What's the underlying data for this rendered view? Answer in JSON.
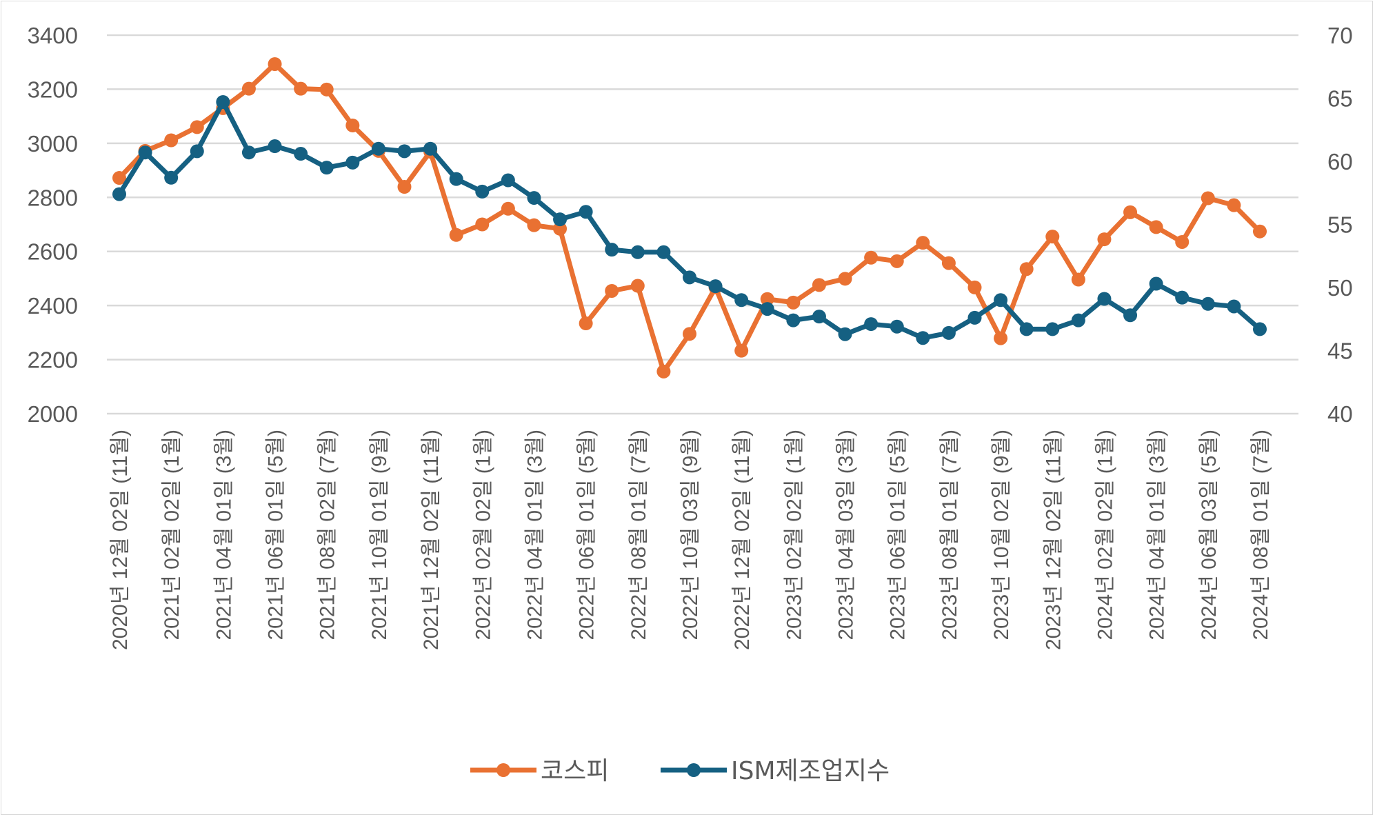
{
  "chart_data": {
    "type": "line",
    "title": "",
    "x_labels": [
      "2020년 12월 02일 (11월)",
      "2021년 02월 02일 (1월)",
      "2021년 04월 01일 (3월)",
      "2021년 06월 01일 (5월)",
      "2021년 08월 02일 (7월)",
      "2021년 10월 01일 (9월)",
      "2021년 12월 02일 (11월)",
      "2022년 02월 02일 (1월)",
      "2022년 04월 01일 (3월)",
      "2022년 06월 01일 (5월)",
      "2022년 08월 01일 (7월)",
      "2022년 10월 03일 (9월)",
      "2022년 12월 02일 (11월)",
      "2023년 02월 02일 (1월)",
      "2023년 04월 03일 (3월)",
      "2023년 06월 01일 (5월)",
      "2023년 08월 01일 (7월)",
      "2023년 10월 02일 (9월)",
      "2023년 12월 02일 (11월)",
      "2024년 02월 02일 (1월)",
      "2024년 04월 01일 (3월)",
      "2024년 06월 03일 (5월)",
      "2024년 08월 01일 (7월)"
    ],
    "label_every": 2,
    "n_points": 45,
    "y_left": {
      "min": 2000,
      "max": 3400,
      "step": 200,
      "ticks": [
        "2000",
        "2200",
        "2400",
        "2600",
        "2800",
        "3000",
        "3200",
        "3400"
      ]
    },
    "y_right": {
      "min": 40,
      "max": 70,
      "step": 5,
      "ticks": [
        "40",
        "45",
        "50",
        "55",
        "60",
        "65",
        "70"
      ]
    },
    "grid": true,
    "legend_position": "bottom",
    "series": [
      {
        "name": "코스피",
        "axis": "left",
        "color": "#E97132",
        "values": [
          2872,
          2972,
          3011,
          3060,
          3130,
          3202,
          3293,
          3202,
          3199,
          3066,
          2972,
          2839,
          2969,
          2661,
          2700,
          2758,
          2697,
          2684,
          2334,
          2454,
          2473,
          2156,
          2295,
          2467,
          2233,
          2424,
          2411,
          2476,
          2499,
          2577,
          2564,
          2632,
          2557,
          2467,
          2279,
          2535,
          2655,
          2496,
          2645,
          2745,
          2690,
          2635,
          2797,
          2771,
          2674
        ]
      },
      {
        "name": "ISM제조업지수",
        "axis": "right",
        "color": "#156082",
        "values": [
          57.4,
          60.7,
          58.7,
          60.8,
          64.7,
          60.7,
          61.2,
          60.6,
          59.5,
          59.9,
          61.0,
          60.8,
          61.0,
          58.6,
          57.6,
          58.5,
          57.1,
          55.4,
          56.0,
          53.0,
          52.8,
          52.8,
          50.8,
          50.1,
          49.0,
          48.3,
          47.4,
          47.7,
          46.3,
          47.1,
          46.9,
          46.0,
          46.4,
          47.6,
          49.0,
          46.7,
          46.7,
          47.4,
          49.1,
          47.8,
          50.3,
          49.2,
          48.7,
          48.5,
          46.7
        ]
      }
    ]
  }
}
